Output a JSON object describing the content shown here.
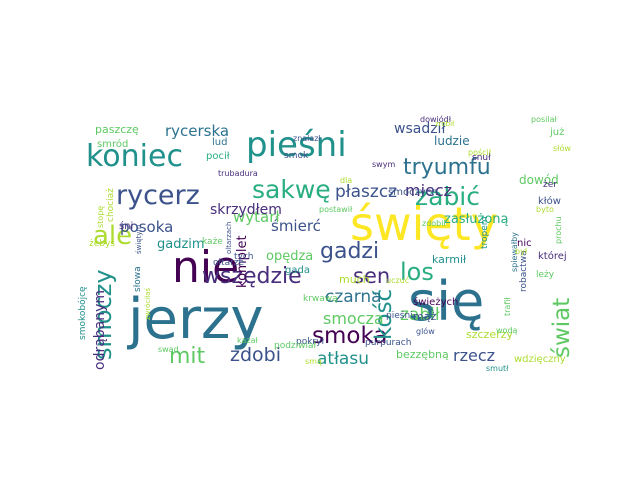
{
  "background_color": "#ffffff",
  "palette": [
    "#440154",
    "#472d7b",
    "#3b528b",
    "#2c728e",
    "#21918c",
    "#28ae80",
    "#5ec962",
    "#addc30",
    "#fde725"
  ],
  "words": [
    {
      "text": "jerzy",
      "color": "#2c728e"
    },
    {
      "text": "się",
      "color": "#2c728e"
    },
    {
      "text": "święty",
      "color": "#fde725"
    },
    {
      "text": "nie",
      "color": "#440154"
    },
    {
      "text": "pieśni",
      "color": "#21918c"
    },
    {
      "text": "koniec",
      "color": "#21918c"
    },
    {
      "text": "tryumfu",
      "color": "#2c728e"
    },
    {
      "text": "rycerz",
      "color": "#3b528b"
    },
    {
      "text": "sakwę",
      "color": "#28ae80"
    },
    {
      "text": "zabić",
      "color": "#28ae80"
    },
    {
      "text": "ale",
      "color": "#addc30"
    },
    {
      "text": "gadzi",
      "color": "#3b528b"
    },
    {
      "text": "wszędzie",
      "color": "#472d7b"
    },
    {
      "text": "los",
      "color": "#28ae80"
    },
    {
      "text": "sen",
      "color": "#472d7b"
    },
    {
      "text": "smoka",
      "color": "#440154"
    },
    {
      "text": "smoczy",
      "color": "#21918c"
    },
    {
      "text": "kość",
      "color": "#21918c"
    },
    {
      "text": "świat",
      "color": "#5ec962"
    },
    {
      "text": "mit",
      "color": "#5ec962"
    },
    {
      "text": "zdobi",
      "color": "#3b528b"
    },
    {
      "text": "atłasu",
      "color": "#21918c"
    },
    {
      "text": "czarna",
      "color": "#2c728e"
    },
    {
      "text": "smocza",
      "color": "#5ec962"
    },
    {
      "text": "zabił",
      "color": "#5ec962"
    },
    {
      "text": "miecz",
      "color": "#472d7b"
    },
    {
      "text": "płaszcz",
      "color": "#3b528b"
    },
    {
      "text": "śmierć",
      "color": "#3b528b"
    },
    {
      "text": "wytarł",
      "color": "#5ec962"
    },
    {
      "text": "posoka",
      "color": "#3b528b"
    },
    {
      "text": "rycerska",
      "color": "#2c728e"
    },
    {
      "text": "skrzydłem",
      "color": "#472d7b"
    },
    {
      "text": "wsadził",
      "color": "#3b528b"
    },
    {
      "text": "rzecz",
      "color": "#3b528b"
    },
    {
      "text": "odrąbanym",
      "color": "#472d7b"
    },
    {
      "text": "gadzim",
      "color": "#21918c"
    },
    {
      "text": "opędza",
      "color": "#5ec962"
    },
    {
      "text": "komplet",
      "color": "#440154"
    },
    {
      "text": "much",
      "color": "#addc30"
    },
    {
      "text": "zasłużoną",
      "color": "#28ae80"
    },
    {
      "text": "dowód",
      "color": "#5ec962"
    },
    {
      "text": "ludzie",
      "color": "#2c728e"
    },
    {
      "text": "bezzębną",
      "color": "#5ec962"
    },
    {
      "text": "szczerzy",
      "color": "#addc30"
    },
    {
      "text": "mąż",
      "color": "#3b528b"
    },
    {
      "text": "karmił",
      "color": "#21918c"
    },
    {
      "text": "śni",
      "color": "#472d7b"
    },
    {
      "text": "gada",
      "color": "#21918c"
    },
    {
      "text": "paszczę",
      "color": "#5ec962"
    },
    {
      "text": "smród",
      "color": "#5ec962"
    },
    {
      "text": "lud",
      "color": "#2c728e"
    },
    {
      "text": "pocił",
      "color": "#28ae80"
    },
    {
      "text": "smok",
      "color": "#3b528b"
    },
    {
      "text": "snuł",
      "color": "#472d7b"
    },
    {
      "text": "smoczych",
      "color": "#3b528b"
    },
    {
      "text": "kłów",
      "color": "#3b528b"
    },
    {
      "text": "żer",
      "color": "#472d7b"
    },
    {
      "text": "już",
      "color": "#5ec962"
    },
    {
      "text": "chociaż",
      "color": "#addc30"
    },
    {
      "text": "żebyś",
      "color": "#addc30"
    },
    {
      "text": "każe",
      "color": "#5ec962"
    },
    {
      "text": "ołtarze",
      "color": "#3b528b"
    },
    {
      "text": "tych",
      "color": "#3b528b"
    },
    {
      "text": "słowa",
      "color": "#2c728e"
    },
    {
      "text": "smokobójcę",
      "color": "#21918c"
    },
    {
      "text": "krwawą",
      "color": "#5ec962"
    },
    {
      "text": "świeżych",
      "color": "#440154"
    },
    {
      "text": "nic",
      "color": "#440154"
    },
    {
      "text": "której",
      "color": "#472d7b"
    },
    {
      "text": "leży",
      "color": "#5ec962"
    },
    {
      "text": "robactwa",
      "color": "#3b528b"
    },
    {
      "text": "pieśni",
      "color": "#3b528b"
    },
    {
      "text": "wdzięczny",
      "color": "#addc30"
    },
    {
      "text": "glów",
      "color": "#3b528b"
    },
    {
      "text": "pokrył",
      "color": "#3b528b"
    },
    {
      "text": "kazał",
      "color": "#5ec962"
    },
    {
      "text": "swąd",
      "color": "#5ec962"
    },
    {
      "text": "purpurach",
      "color": "#3b528b"
    },
    {
      "text": "posilał",
      "color": "#5ec962"
    },
    {
      "text": "słów",
      "color": "#addc30"
    },
    {
      "text": "podziwiał",
      "color": "#5ec962"
    },
    {
      "text": "trubadura",
      "color": "#472d7b"
    },
    {
      "text": "znalazł",
      "color": "#3b528b"
    },
    {
      "text": "dla",
      "color": "#addc30"
    },
    {
      "text": "postawił",
      "color": "#5ec962"
    },
    {
      "text": "zdobił",
      "color": "#5ec962"
    },
    {
      "text": "swym",
      "color": "#472d7b"
    },
    {
      "text": "smą",
      "color": "#addc30"
    },
    {
      "text": "dowiódł",
      "color": "#472d7b"
    },
    {
      "text": "zrobił",
      "color": "#addc30"
    },
    {
      "text": "stopę",
      "color": "#addc30"
    },
    {
      "text": "świętym",
      "color": "#3b528b"
    },
    {
      "text": "trafił",
      "color": "#5ec962"
    },
    {
      "text": "spiewałby",
      "color": "#2c728e"
    },
    {
      "text": "był",
      "color": "#addc30"
    },
    {
      "text": "byto",
      "color": "#addc30"
    },
    {
      "text": "prochu",
      "color": "#5ec962"
    },
    {
      "text": "tropem",
      "color": "#21918c"
    },
    {
      "text": "uczuć",
      "color": "#addc30"
    },
    {
      "text": "smutł",
      "color": "#21918c"
    },
    {
      "text": "wodą",
      "color": "#5ec962"
    },
    {
      "text": "pościł",
      "color": "#addc30"
    },
    {
      "text": "oltarzach",
      "color": "#3b528b"
    },
    {
      "text": "zwróciłaś",
      "color": "#addc30"
    }
  ]
}
